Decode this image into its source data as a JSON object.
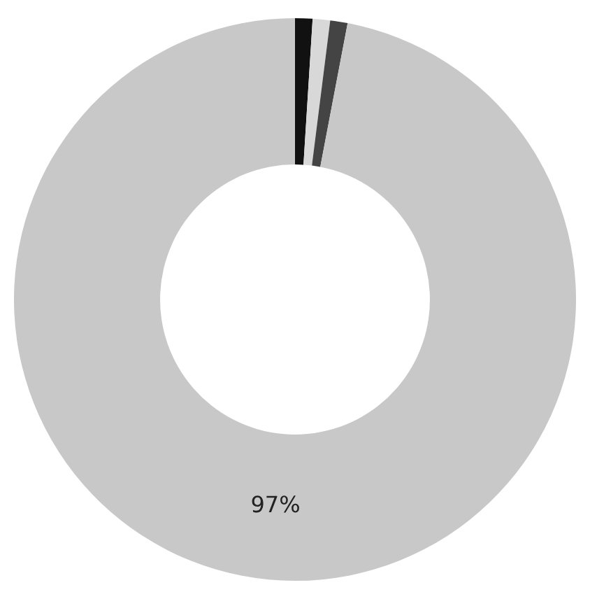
{
  "chart_data": {
    "type": "donut",
    "categories": [
      null,
      null,
      null,
      null
    ],
    "values": [
      1,
      1,
      1,
      97
    ],
    "colors": [
      "#111111",
      "#d8d8d8",
      "#444444",
      "#c8c8c8"
    ],
    "value_labels": [
      null,
      null,
      null,
      "97%"
    ],
    "legend": false
  }
}
